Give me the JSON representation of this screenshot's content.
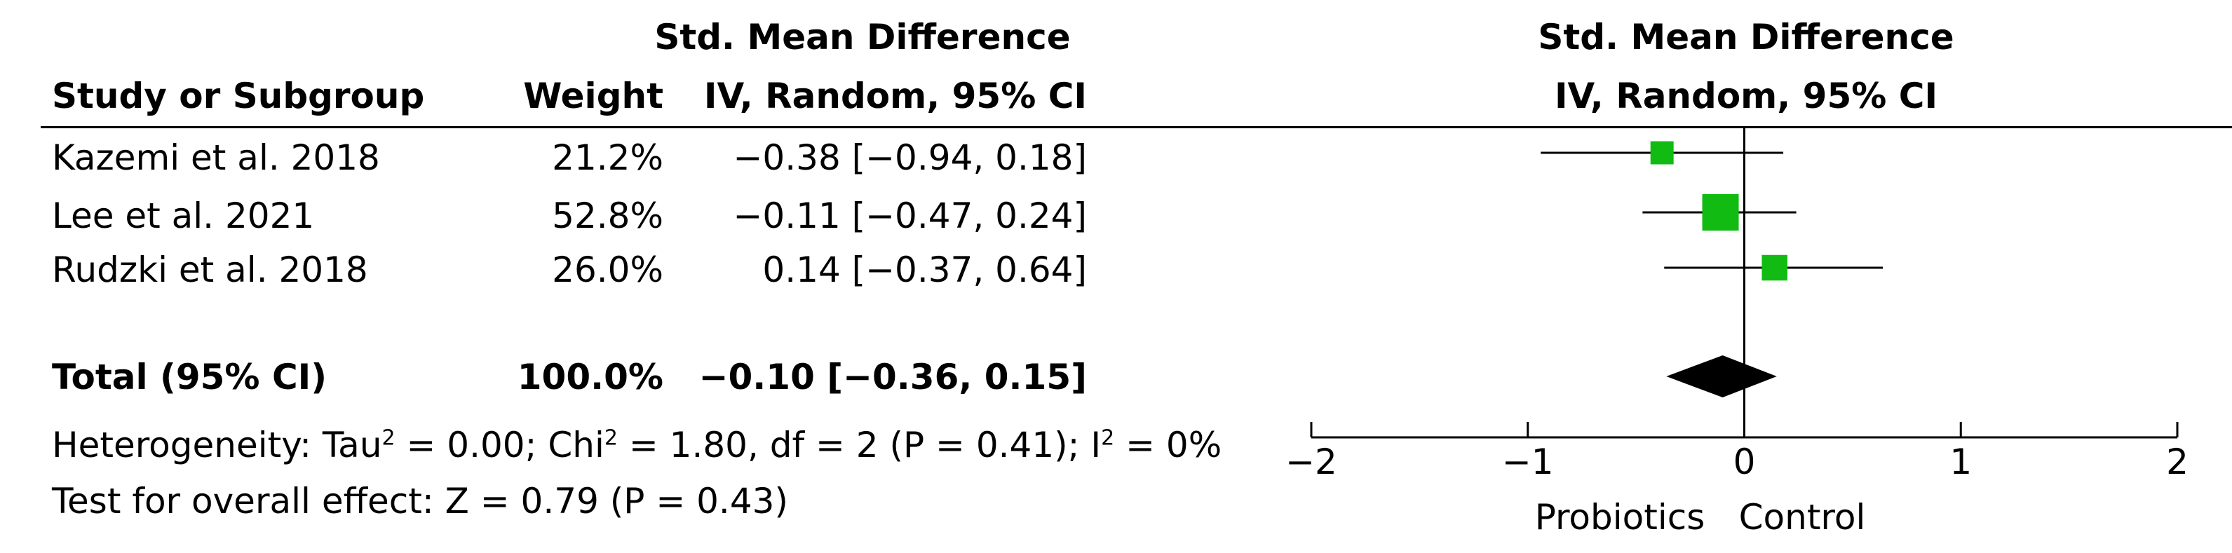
{
  "header": {
    "group_title": "Std. Mean Difference",
    "study_col": "Study or Subgroup",
    "weight_col": "Weight",
    "method_col": "IV, Random, 95% CI",
    "plot_title": "Std. Mean Difference",
    "plot_method": "IV, Random, 95% CI"
  },
  "studies": [
    {
      "name": "Kazemi et al. 2018",
      "weight": "21.2%",
      "ci_text": "−0.38 [−0.94, 0.18]"
    },
    {
      "name": "Lee et al. 2021",
      "weight": "52.8%",
      "ci_text": "−0.11 [−0.47, 0.24]"
    },
    {
      "name": "Rudzki et al. 2018",
      "weight": "26.0%",
      "ci_text": "0.14 [−0.37, 0.64]"
    }
  ],
  "total": {
    "label": "Total (95% CI)",
    "weight": "100.0%",
    "ci_text": "−0.10 [−0.36, 0.15]"
  },
  "heterogeneity": {
    "prefix": "Heterogeneity: Tau",
    "tau_sup": "2",
    "tau_val": " = 0.00; Chi",
    "chi_sup": "2",
    "chi_val": " = 1.80, df = 2 (P = 0.41); I",
    "i_sup": "2",
    "i_val": " = 0%"
  },
  "overall_effect": "Test for overall effect: Z = 0.79 (P = 0.43)",
  "axis": {
    "left_label": "Probiotics",
    "right_label": "Control"
  },
  "colors": {
    "marker": "#11bb11",
    "diamond": "#000000",
    "line": "#000000"
  },
  "chart_data": {
    "type": "forest",
    "xlim": [
      -2,
      2
    ],
    "xticks": [
      -2,
      -1,
      0,
      1,
      2
    ],
    "xtick_labels": [
      "−2",
      "−1",
      "0",
      "1",
      "2"
    ],
    "null_line": 0,
    "studies": [
      {
        "name": "Kazemi et al. 2018",
        "estimate": -0.38,
        "lower": -0.94,
        "upper": 0.18,
        "weight": 21.2
      },
      {
        "name": "Lee et al. 2021",
        "estimate": -0.11,
        "lower": -0.47,
        "upper": 0.24,
        "weight": 52.8
      },
      {
        "name": "Rudzki et al. 2018",
        "estimate": 0.14,
        "lower": -0.37,
        "upper": 0.64,
        "weight": 26.0
      }
    ],
    "pooled": {
      "estimate": -0.1,
      "lower": -0.36,
      "upper": 0.15
    }
  }
}
